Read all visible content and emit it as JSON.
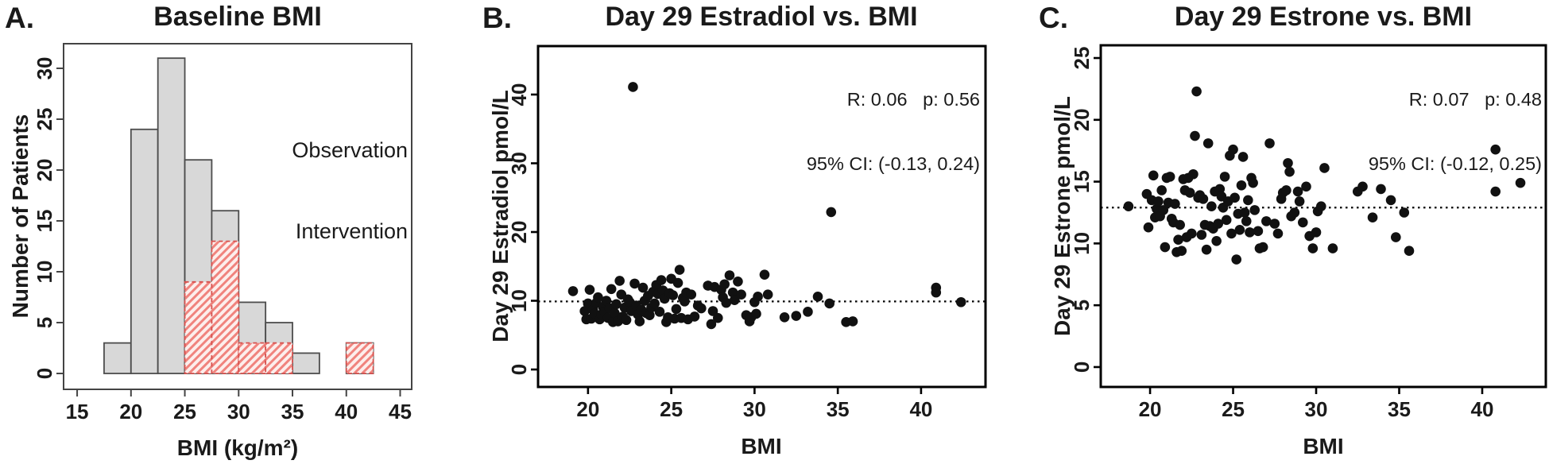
{
  "panels": {
    "a": {
      "label": "A.",
      "title": "Baseline BMI",
      "xlabel": "BMI (kg/m²)",
      "ylabel": "Number of Patients",
      "legend": {
        "line1": "Observation",
        "line2": "Intervention"
      }
    },
    "b": {
      "label": "B.",
      "title": "Day 29 Estradiol vs. BMI",
      "xlabel": "BMI",
      "ylabel": "Day 29 Estradiol pmol/L",
      "stats": {
        "line1": "R: 0.06   p: 0.56",
        "line2": "95% CI: (-0.13, 0.24)"
      }
    },
    "c": {
      "label": "C.",
      "title": "Day 29 Estrone vs. BMI",
      "xlabel": "BMI",
      "ylabel": "Day 29 Estrone pmol/L",
      "stats": {
        "line1": "R: 0.07   p: 0.48",
        "line2": "95% CI: (-0.12, 0.25)"
      }
    }
  },
  "colors": {
    "observation_fill": "#d8d8d8",
    "observation_border": "#4d4d4d",
    "intervention_stripe": "#f0837d",
    "intervention_bg": "#fdeeec",
    "intervention_border": "#d6504d",
    "point": "#111111",
    "box_a": "#444444",
    "box_bc": "#000000"
  },
  "chart_data": [
    {
      "type": "bar",
      "panel": "A",
      "title": "Baseline BMI",
      "xlabel": "BMI (kg/m2)",
      "ylabel": "Number of Patients",
      "bin_width": 2.5,
      "bin_starts": [
        17.5,
        20,
        22.5,
        25,
        27.5,
        30,
        32.5,
        35,
        37.5,
        40
      ],
      "series": [
        {
          "name": "Observation",
          "values": [
            3,
            24,
            31,
            21,
            16,
            7,
            5,
            2,
            0,
            3
          ]
        },
        {
          "name": "Intervention",
          "values": [
            0,
            0,
            0,
            9,
            13,
            3,
            3,
            0,
            0,
            3
          ]
        }
      ],
      "xticks": [
        15,
        20,
        25,
        30,
        35,
        40,
        45
      ],
      "yticks": [
        0,
        5,
        10,
        15,
        20,
        25,
        30
      ],
      "xlim": [
        13.74,
        46.07
      ],
      "ylim": [
        -1.56,
        32.42
      ],
      "legend_position": "top-right",
      "grid": false
    },
    {
      "type": "scatter",
      "panel": "B",
      "title": "Day 29 Estradiol vs. BMI",
      "xlabel": "BMI",
      "ylabel": "Day 29 Estradiol pmol/L",
      "annotation": [
        "R: 0.06   p: 0.56",
        "95% CI: (-0.13, 0.24)"
      ],
      "xticks": [
        20,
        25,
        30,
        35,
        40
      ],
      "yticks": [
        0,
        10,
        20,
        30,
        40
      ],
      "xlim": [
        17.0,
        43.87
      ],
      "ylim": [
        -2.54,
        47.05
      ],
      "refline_y": 9.9,
      "grid": false,
      "points": [
        [
          19.1,
          11.4
        ],
        [
          19.8,
          8.5
        ],
        [
          19.9,
          7.3
        ],
        [
          20.0,
          9.6
        ],
        [
          20.1,
          11.6
        ],
        [
          20.2,
          7.4
        ],
        [
          20.3,
          8.7
        ],
        [
          20.4,
          8.1
        ],
        [
          20.5,
          9.7
        ],
        [
          20.6,
          10.5
        ],
        [
          20.7,
          7.3
        ],
        [
          20.8,
          8.0
        ],
        [
          20.9,
          9.1
        ],
        [
          21.0,
          8.4
        ],
        [
          21.1,
          10.0
        ],
        [
          21.2,
          7.5
        ],
        [
          21.3,
          8.9
        ],
        [
          21.4,
          11.7
        ],
        [
          21.5,
          6.9
        ],
        [
          21.6,
          8.2
        ],
        [
          21.7,
          9.5
        ],
        [
          21.8,
          7.0
        ],
        [
          21.9,
          12.9
        ],
        [
          22.0,
          10.9
        ],
        [
          22.1,
          7.7
        ],
        [
          22.2,
          9.0
        ],
        [
          22.3,
          7.2
        ],
        [
          22.4,
          10.2
        ],
        [
          22.5,
          9.8
        ],
        [
          22.6,
          8.5
        ],
        [
          22.7,
          41.1
        ],
        [
          22.8,
          12.5
        ],
        [
          22.9,
          9.3
        ],
        [
          23.0,
          8.0
        ],
        [
          23.1,
          7.0
        ],
        [
          23.2,
          8.7
        ],
        [
          23.3,
          11.9
        ],
        [
          23.4,
          10.0
        ],
        [
          23.5,
          8.2
        ],
        [
          23.6,
          10.7
        ],
        [
          23.7,
          7.9
        ],
        [
          23.8,
          9.0
        ],
        [
          23.9,
          11.3
        ],
        [
          24.0,
          9.6
        ],
        [
          24.1,
          12.3
        ],
        [
          24.2,
          11.0
        ],
        [
          24.3,
          8.4
        ],
        [
          24.4,
          13.0
        ],
        [
          24.5,
          11.5
        ],
        [
          24.6,
          10.3
        ],
        [
          24.7,
          6.9
        ],
        [
          24.8,
          7.6
        ],
        [
          24.9,
          11.1
        ],
        [
          25.0,
          13.2
        ],
        [
          25.1,
          10.8
        ],
        [
          25.2,
          7.4
        ],
        [
          25.3,
          8.8
        ],
        [
          25.4,
          12.6
        ],
        [
          25.5,
          14.5
        ],
        [
          25.6,
          7.5
        ],
        [
          25.7,
          10.4
        ],
        [
          25.8,
          9.9
        ],
        [
          25.9,
          11.2
        ],
        [
          26.0,
          7.3
        ],
        [
          26.2,
          10.9
        ],
        [
          26.4,
          7.7
        ],
        [
          26.6,
          9.3
        ],
        [
          26.8,
          8.9
        ],
        [
          27.2,
          12.2
        ],
        [
          27.4,
          6.6
        ],
        [
          27.5,
          8.5
        ],
        [
          27.6,
          12.0
        ],
        [
          27.8,
          7.5
        ],
        [
          28.0,
          11.6
        ],
        [
          28.1,
          10.5
        ],
        [
          28.2,
          12.4
        ],
        [
          28.3,
          9.7
        ],
        [
          28.5,
          13.7
        ],
        [
          28.7,
          11.2
        ],
        [
          28.8,
          10.1
        ],
        [
          29.0,
          12.8
        ],
        [
          29.2,
          10.9
        ],
        [
          29.5,
          7.9
        ],
        [
          29.7,
          7.0
        ],
        [
          29.8,
          7.6
        ],
        [
          30.0,
          9.8
        ],
        [
          30.1,
          8.1
        ],
        [
          30.2,
          10.6
        ],
        [
          30.6,
          13.8
        ],
        [
          30.8,
          10.9
        ],
        [
          31.8,
          7.6
        ],
        [
          32.5,
          7.8
        ],
        [
          33.2,
          8.4
        ],
        [
          33.8,
          10.6
        ],
        [
          34.5,
          9.6
        ],
        [
          34.6,
          22.9
        ],
        [
          35.5,
          6.9
        ],
        [
          35.9,
          7.0
        ],
        [
          40.9,
          11.9
        ],
        [
          40.9,
          11.2
        ],
        [
          42.4,
          9.8
        ]
      ]
    },
    {
      "type": "scatter",
      "panel": "C",
      "title": "Day 29 Estrone vs. BMI",
      "xlabel": "BMI",
      "ylabel": "Day 29 Estrone pmol/L",
      "annotation": [
        "R: 0.07   p: 0.48",
        "95% CI: (-0.12, 0.25)"
      ],
      "xticks": [
        20,
        25,
        30,
        35,
        40
      ],
      "yticks": [
        0,
        5,
        10,
        15,
        20,
        25
      ],
      "xlim": [
        17.03,
        43.83
      ],
      "ylim": [
        -1.61,
        26.03
      ],
      "refline_y": 12.9,
      "grid": false,
      "points": [
        [
          18.7,
          13.0
        ],
        [
          19.8,
          14.0
        ],
        [
          19.9,
          11.3
        ],
        [
          20.1,
          13.5
        ],
        [
          20.2,
          15.5
        ],
        [
          20.3,
          12.1
        ],
        [
          20.4,
          12.8
        ],
        [
          20.5,
          13.4
        ],
        [
          20.6,
          12.2
        ],
        [
          20.7,
          14.3
        ],
        [
          20.8,
          12.7
        ],
        [
          20.9,
          9.7
        ],
        [
          21.0,
          15.3
        ],
        [
          21.1,
          13.3
        ],
        [
          21.2,
          15.4
        ],
        [
          21.3,
          12.0
        ],
        [
          21.4,
          11.7
        ],
        [
          21.5,
          13.2
        ],
        [
          21.6,
          9.3
        ],
        [
          21.7,
          10.3
        ],
        [
          21.8,
          11.5
        ],
        [
          21.9,
          9.4
        ],
        [
          22.0,
          15.2
        ],
        [
          22.1,
          14.3
        ],
        [
          22.2,
          10.5
        ],
        [
          22.3,
          15.3
        ],
        [
          22.4,
          14.1
        ],
        [
          22.5,
          10.8
        ],
        [
          22.6,
          15.6
        ],
        [
          22.7,
          18.7
        ],
        [
          22.8,
          22.3
        ],
        [
          22.9,
          13.7
        ],
        [
          23.0,
          13.9
        ],
        [
          23.1,
          10.7
        ],
        [
          23.2,
          13.6
        ],
        [
          23.3,
          11.5
        ],
        [
          23.4,
          9.5
        ],
        [
          23.5,
          18.1
        ],
        [
          23.6,
          11.4
        ],
        [
          23.7,
          13.0
        ],
        [
          23.8,
          11.2
        ],
        [
          23.9,
          14.2
        ],
        [
          24.0,
          10.2
        ],
        [
          24.1,
          11.6
        ],
        [
          24.2,
          14.4
        ],
        [
          24.3,
          13.8
        ],
        [
          24.4,
          12.9
        ],
        [
          24.5,
          15.4
        ],
        [
          24.6,
          11.9
        ],
        [
          24.7,
          13.4
        ],
        [
          24.8,
          17.1
        ],
        [
          24.9,
          10.8
        ],
        [
          25.0,
          17.6
        ],
        [
          25.1,
          13.7
        ],
        [
          25.2,
          8.7
        ],
        [
          25.3,
          12.4
        ],
        [
          25.4,
          11.1
        ],
        [
          25.5,
          14.7
        ],
        [
          25.6,
          17.0
        ],
        [
          25.7,
          12.5
        ],
        [
          25.8,
          11.8
        ],
        [
          25.9,
          13.5
        ],
        [
          26.0,
          10.9
        ],
        [
          26.1,
          15.3
        ],
        [
          26.2,
          14.9
        ],
        [
          26.3,
          12.7
        ],
        [
          26.5,
          11.0
        ],
        [
          26.6,
          9.6
        ],
        [
          26.8,
          9.7
        ],
        [
          27.0,
          11.8
        ],
        [
          27.2,
          18.1
        ],
        [
          27.5,
          11.6
        ],
        [
          27.7,
          10.8
        ],
        [
          27.9,
          13.6
        ],
        [
          28.0,
          14.1
        ],
        [
          28.2,
          14.3
        ],
        [
          28.3,
          16.5
        ],
        [
          28.4,
          15.8
        ],
        [
          28.5,
          12.2
        ],
        [
          28.7,
          12.5
        ],
        [
          28.9,
          14.2
        ],
        [
          29.0,
          13.4
        ],
        [
          29.2,
          11.7
        ],
        [
          29.4,
          14.6
        ],
        [
          29.6,
          10.6
        ],
        [
          29.8,
          9.6
        ],
        [
          30.0,
          10.9
        ],
        [
          30.1,
          12.6
        ],
        [
          30.3,
          13.0
        ],
        [
          30.5,
          16.1
        ],
        [
          31.0,
          9.6
        ],
        [
          32.5,
          14.2
        ],
        [
          32.8,
          14.6
        ],
        [
          33.4,
          12.1
        ],
        [
          33.9,
          14.4
        ],
        [
          34.5,
          13.5
        ],
        [
          34.8,
          10.5
        ],
        [
          35.3,
          12.5
        ],
        [
          35.6,
          9.4
        ],
        [
          40.8,
          17.6
        ],
        [
          40.8,
          14.2
        ],
        [
          42.3,
          14.9
        ]
      ]
    }
  ]
}
